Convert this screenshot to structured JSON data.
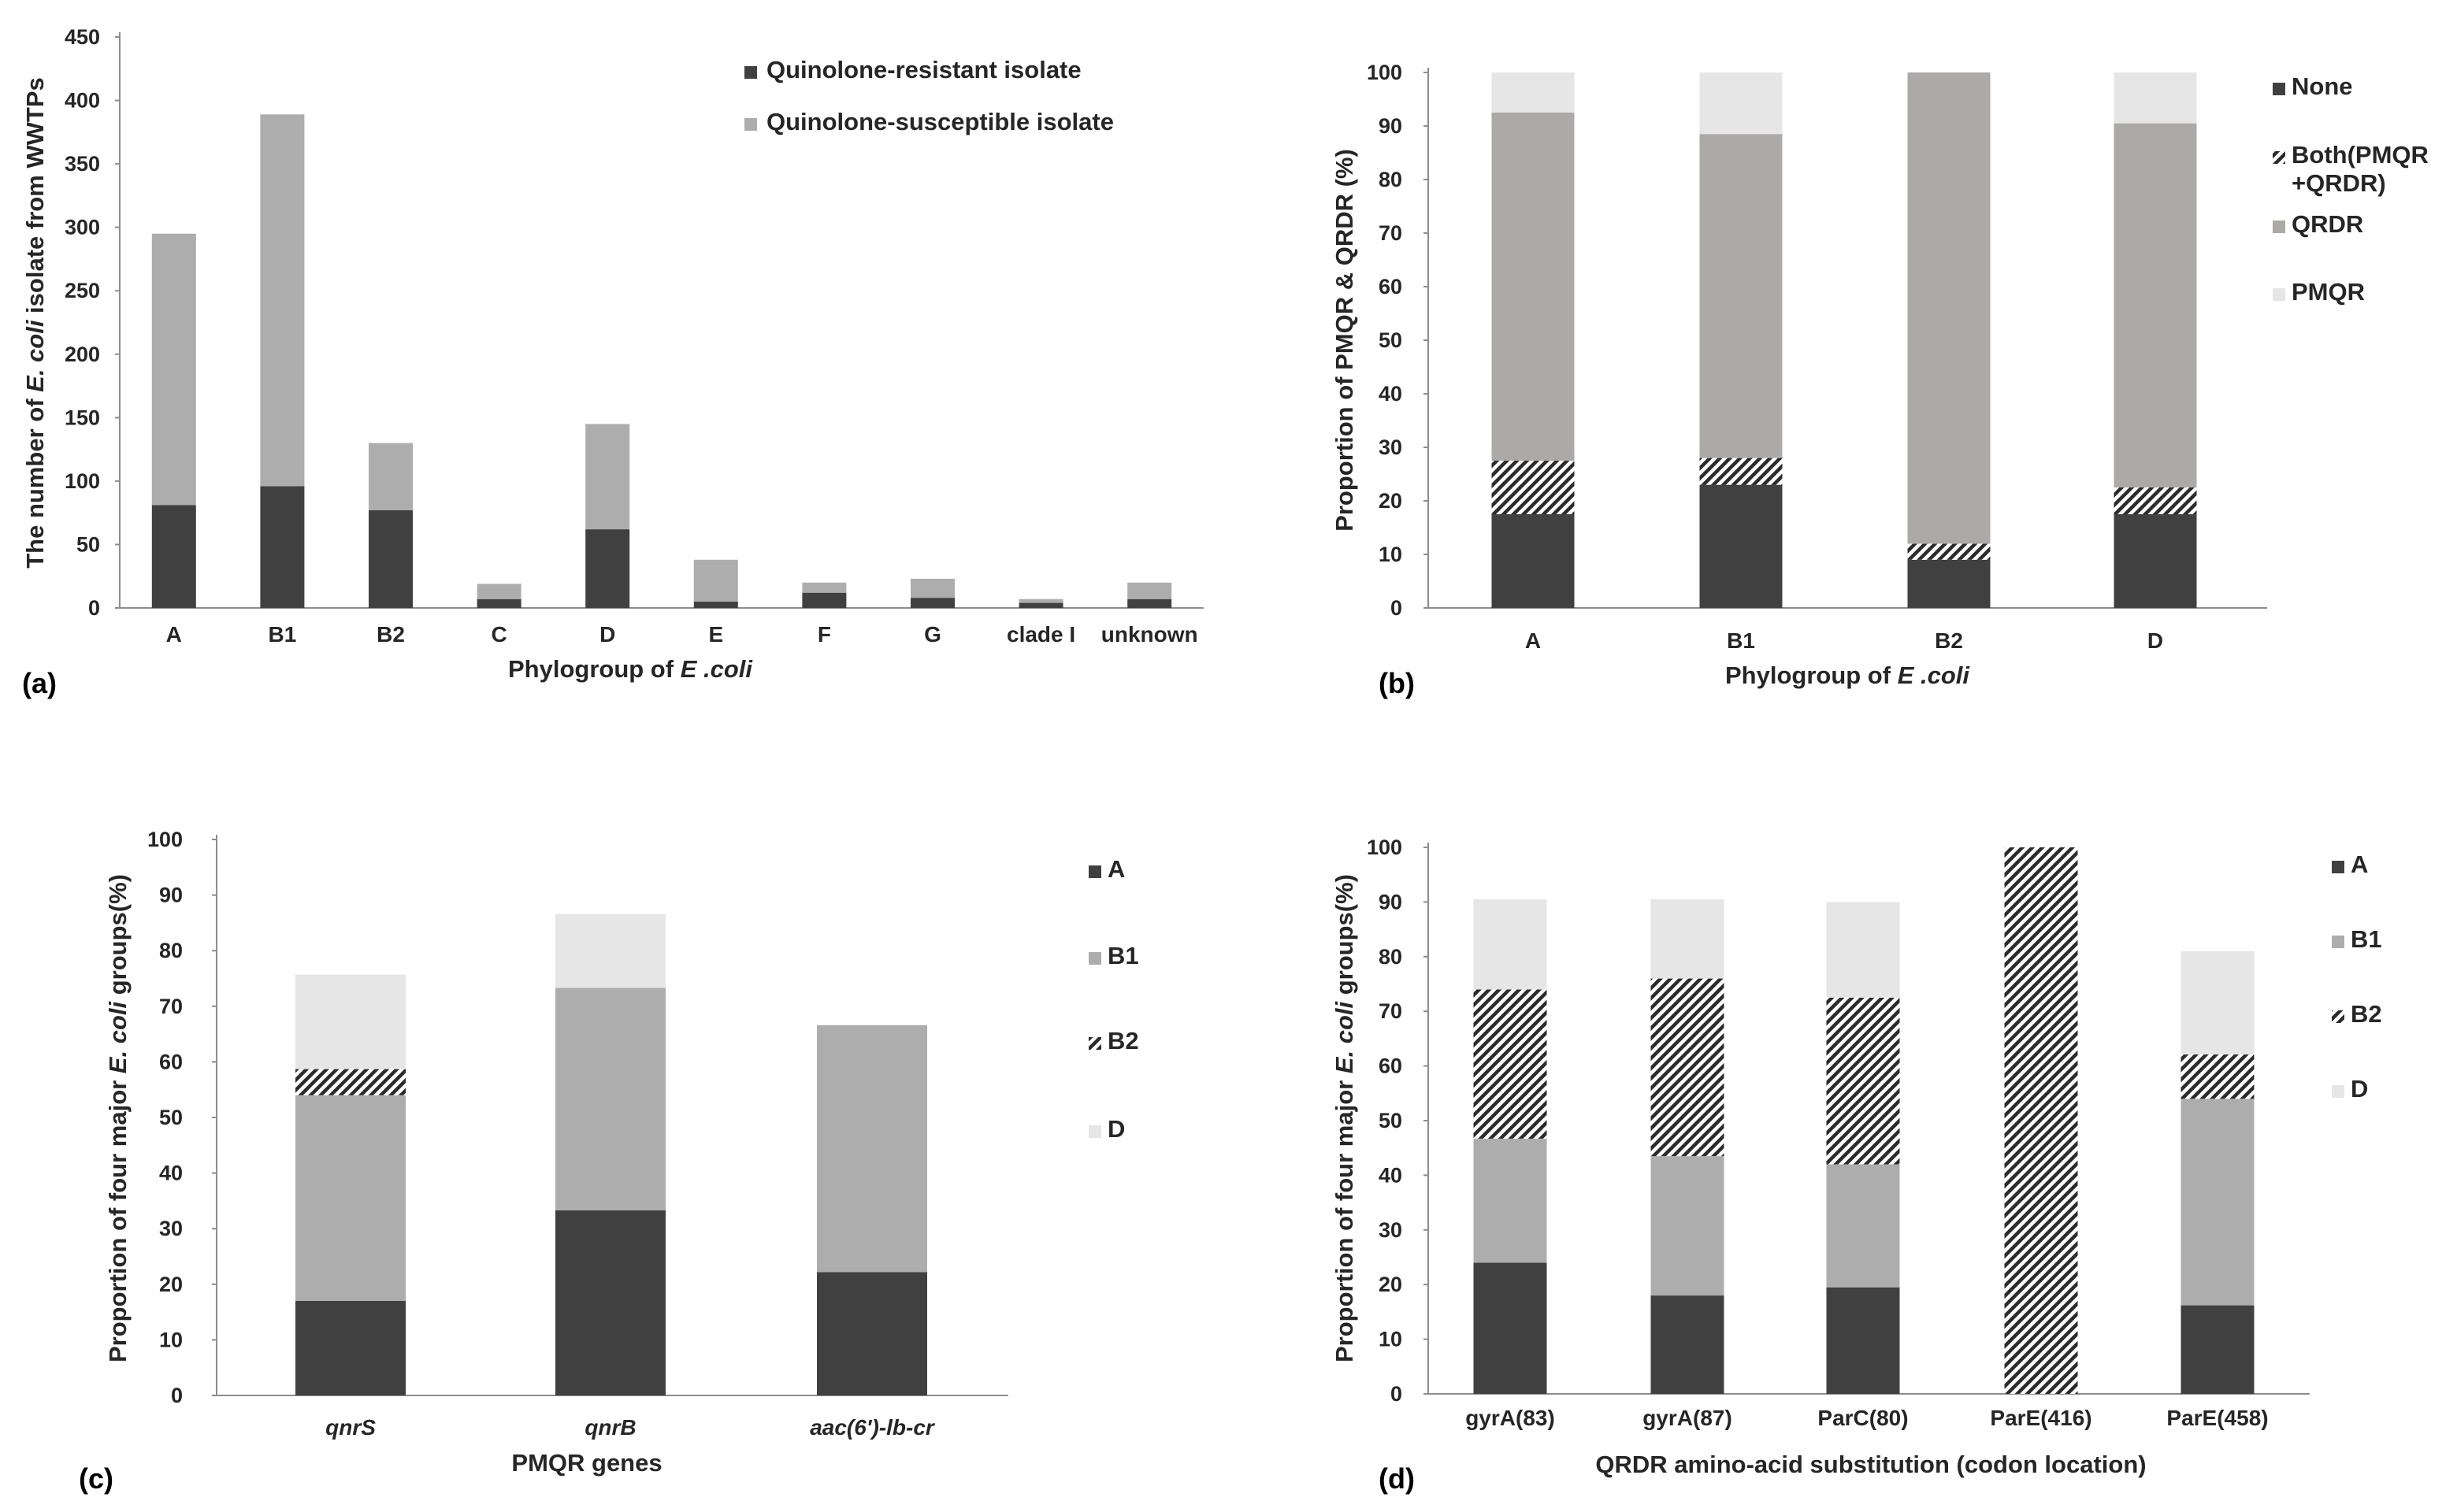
{
  "colors": {
    "dark": "#404040",
    "mid": "#adadad",
    "qrdr": "#aca9a9",
    "light": "#e6e6e6",
    "axis": "#8c8c8c",
    "hatch_line": "#2b2b2b"
  },
  "chart_data": [
    {
      "id": "a",
      "type": "bar",
      "stacked": true,
      "panel_label": "(a)",
      "xlabel_parts": [
        {
          "text": "Phylogroup of ",
          "italic": false
        },
        {
          "text": "E .coli",
          "italic": true
        }
      ],
      "ylabel_parts": [
        {
          "text": "The number of ",
          "italic": false
        },
        {
          "text": "E. coli",
          "italic": true
        },
        {
          "text": " isolate from WWTPs",
          "italic": false
        }
      ],
      "ylim": [
        0,
        450
      ],
      "yticks": [
        0,
        50,
        100,
        150,
        200,
        250,
        300,
        350,
        400,
        450
      ],
      "categories": [
        "A",
        "B1",
        "B2",
        "C",
        "D",
        "E",
        "F",
        "G",
        "clade I",
        "unknown"
      ],
      "categories_italic": false,
      "legend_position": "top-right",
      "series": [
        {
          "name": "Quinolone-resistant isolate",
          "fill": "dark",
          "values": [
            81,
            96,
            77,
            7,
            62,
            5,
            12,
            8,
            4,
            7
          ]
        },
        {
          "name": "Quinolone-susceptible isolate",
          "fill": "mid",
          "values": [
            214,
            293,
            53,
            12,
            83,
            33,
            8,
            15,
            3,
            13
          ]
        }
      ]
    },
    {
      "id": "b",
      "type": "bar",
      "stacked": true,
      "panel_label": "(b)",
      "xlabel_parts": [
        {
          "text": "Phylogroup of ",
          "italic": false
        },
        {
          "text": "E .coli",
          "italic": true
        }
      ],
      "ylabel_parts": [
        {
          "text": "Proportion of PMQR & QRDR (%)",
          "italic": false
        }
      ],
      "ylim": [
        0,
        100
      ],
      "yticks": [
        0,
        10,
        20,
        30,
        40,
        50,
        60,
        70,
        80,
        90,
        100
      ],
      "categories": [
        "A",
        "B1",
        "B2",
        "D"
      ],
      "categories_italic": false,
      "legend_position": "right",
      "series": [
        {
          "name": "None",
          "fill": "dark",
          "values": [
            17.5,
            23,
            9,
            17.5
          ]
        },
        {
          "name": "Both(PMQR +QRDR)",
          "legend_lines": [
            "Both(PMQR",
            "+QRDR)"
          ],
          "fill": "hatch",
          "values": [
            10,
            5,
            3,
            5
          ]
        },
        {
          "name": "QRDR",
          "fill": "qrdr",
          "values": [
            65,
            60.5,
            88,
            68
          ]
        },
        {
          "name": "PMQR",
          "fill": "light",
          "values": [
            7.5,
            11.5,
            0,
            9.5
          ]
        }
      ]
    },
    {
      "id": "c",
      "type": "bar",
      "stacked": true,
      "panel_label": "(c)",
      "xlabel_parts": [
        {
          "text": "PMQR genes",
          "italic": false
        }
      ],
      "ylabel_parts": [
        {
          "text": "Proportion of four major ",
          "italic": false
        },
        {
          "text": "E. coli",
          "italic": true
        },
        {
          "text": " groups(%)",
          "italic": false
        }
      ],
      "ylim": [
        0,
        100
      ],
      "yticks": [
        0,
        10,
        20,
        30,
        40,
        50,
        60,
        70,
        80,
        90,
        100
      ],
      "categories": [
        "qnrS",
        "qnrB",
        "aac(6')-lb-cr"
      ],
      "categories_italic": true,
      "legend_position": "right",
      "series": [
        {
          "name": "A",
          "fill": "dark",
          "values": [
            17,
            33.3,
            22.2
          ]
        },
        {
          "name": "B1",
          "fill": "mid",
          "values": [
            37,
            40,
            44.4
          ]
        },
        {
          "name": "B2",
          "fill": "hatch",
          "values": [
            4.7,
            0,
            0
          ]
        },
        {
          "name": "D",
          "fill": "light",
          "values": [
            17,
            13.3,
            0
          ]
        }
      ]
    },
    {
      "id": "d",
      "type": "bar",
      "stacked": true,
      "panel_label": "(d)",
      "xlabel_parts": [
        {
          "text": "QRDR amino-acid substitution (codon location)",
          "italic": false
        }
      ],
      "ylabel_parts": [
        {
          "text": "Proportion of four major ",
          "italic": false
        },
        {
          "text": "E. coli",
          "italic": true
        },
        {
          "text": " groups(%)",
          "italic": false
        }
      ],
      "ylim": [
        0,
        100
      ],
      "yticks": [
        0,
        10,
        20,
        30,
        40,
        50,
        60,
        70,
        80,
        90,
        100
      ],
      "categories": [
        "gyrA(83)",
        "gyrA(87)",
        "ParC(80)",
        "ParE(416)",
        "ParE(458)"
      ],
      "categories_italic": false,
      "legend_position": "right",
      "series": [
        {
          "name": "A",
          "fill": "dark",
          "values": [
            24,
            18,
            19.5,
            0,
            16.2
          ]
        },
        {
          "name": "B1",
          "fill": "mid",
          "values": [
            22.7,
            25.5,
            22.5,
            0,
            37.8
          ]
        },
        {
          "name": "B2",
          "fill": "hatch",
          "values": [
            27.3,
            32.5,
            30.5,
            100,
            8.1
          ]
        },
        {
          "name": "D",
          "fill": "light",
          "values": [
            16.5,
            14.5,
            17.5,
            0,
            18.9
          ]
        }
      ]
    }
  ]
}
